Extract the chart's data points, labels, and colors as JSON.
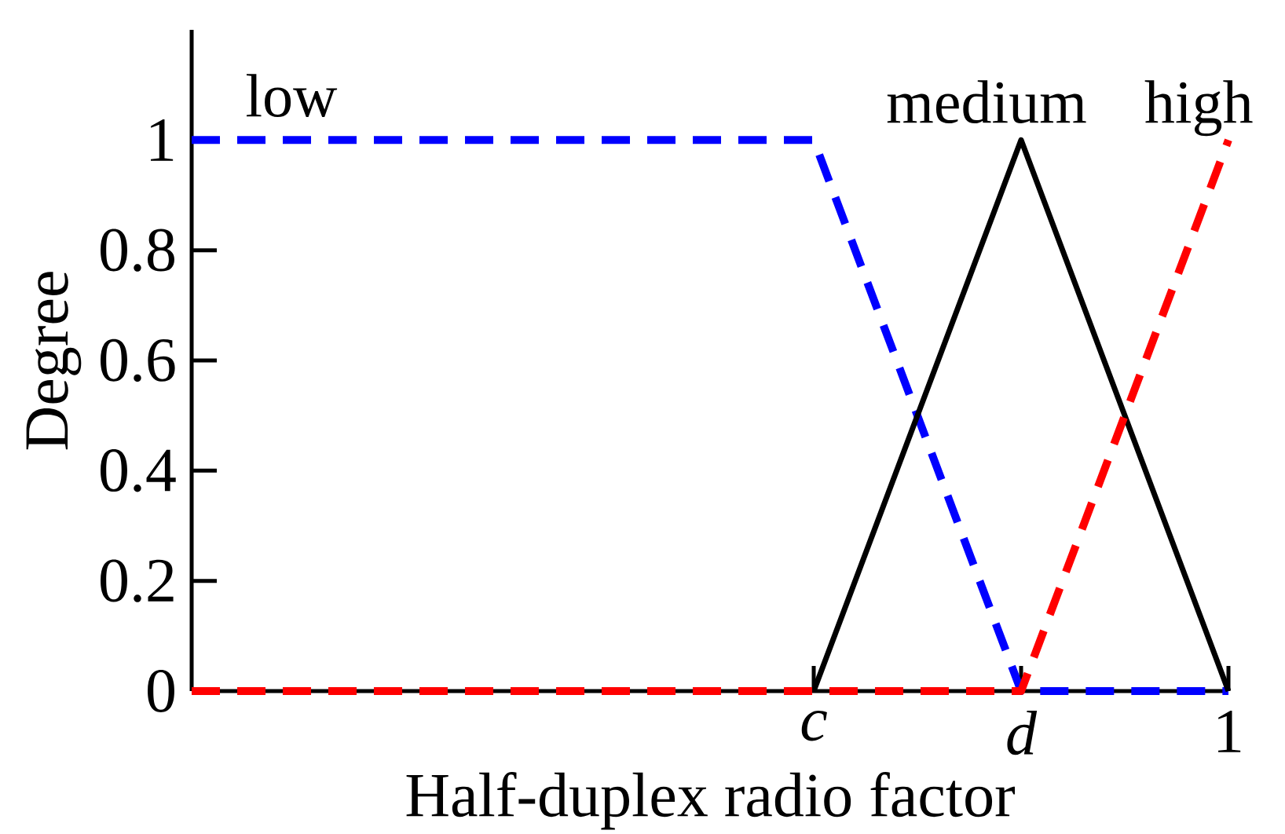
{
  "chart_data": {
    "type": "line",
    "xlabel": "Half-duplex radio factor",
    "ylabel": "Degree",
    "categories": [
      null,
      null,
      null,
      "c",
      "d",
      "1"
    ],
    "ylim": [
      0,
      1.2
    ],
    "yticks": [
      0,
      0.2,
      0.4,
      0.6,
      0.8,
      1
    ],
    "series": [
      {
        "name": "low",
        "color": "#0000ff",
        "line_style": "dashed",
        "values": [
          1,
          1,
          1,
          1,
          0,
          0
        ]
      },
      {
        "name": "medium",
        "color": "#000000",
        "line_style": "solid",
        "values": [
          null,
          null,
          null,
          0,
          1,
          0
        ]
      },
      {
        "name": "high",
        "color": "#ff0000",
        "line_style": "dashed",
        "values": [
          0,
          0,
          0,
          0,
          0,
          1
        ]
      }
    ]
  }
}
